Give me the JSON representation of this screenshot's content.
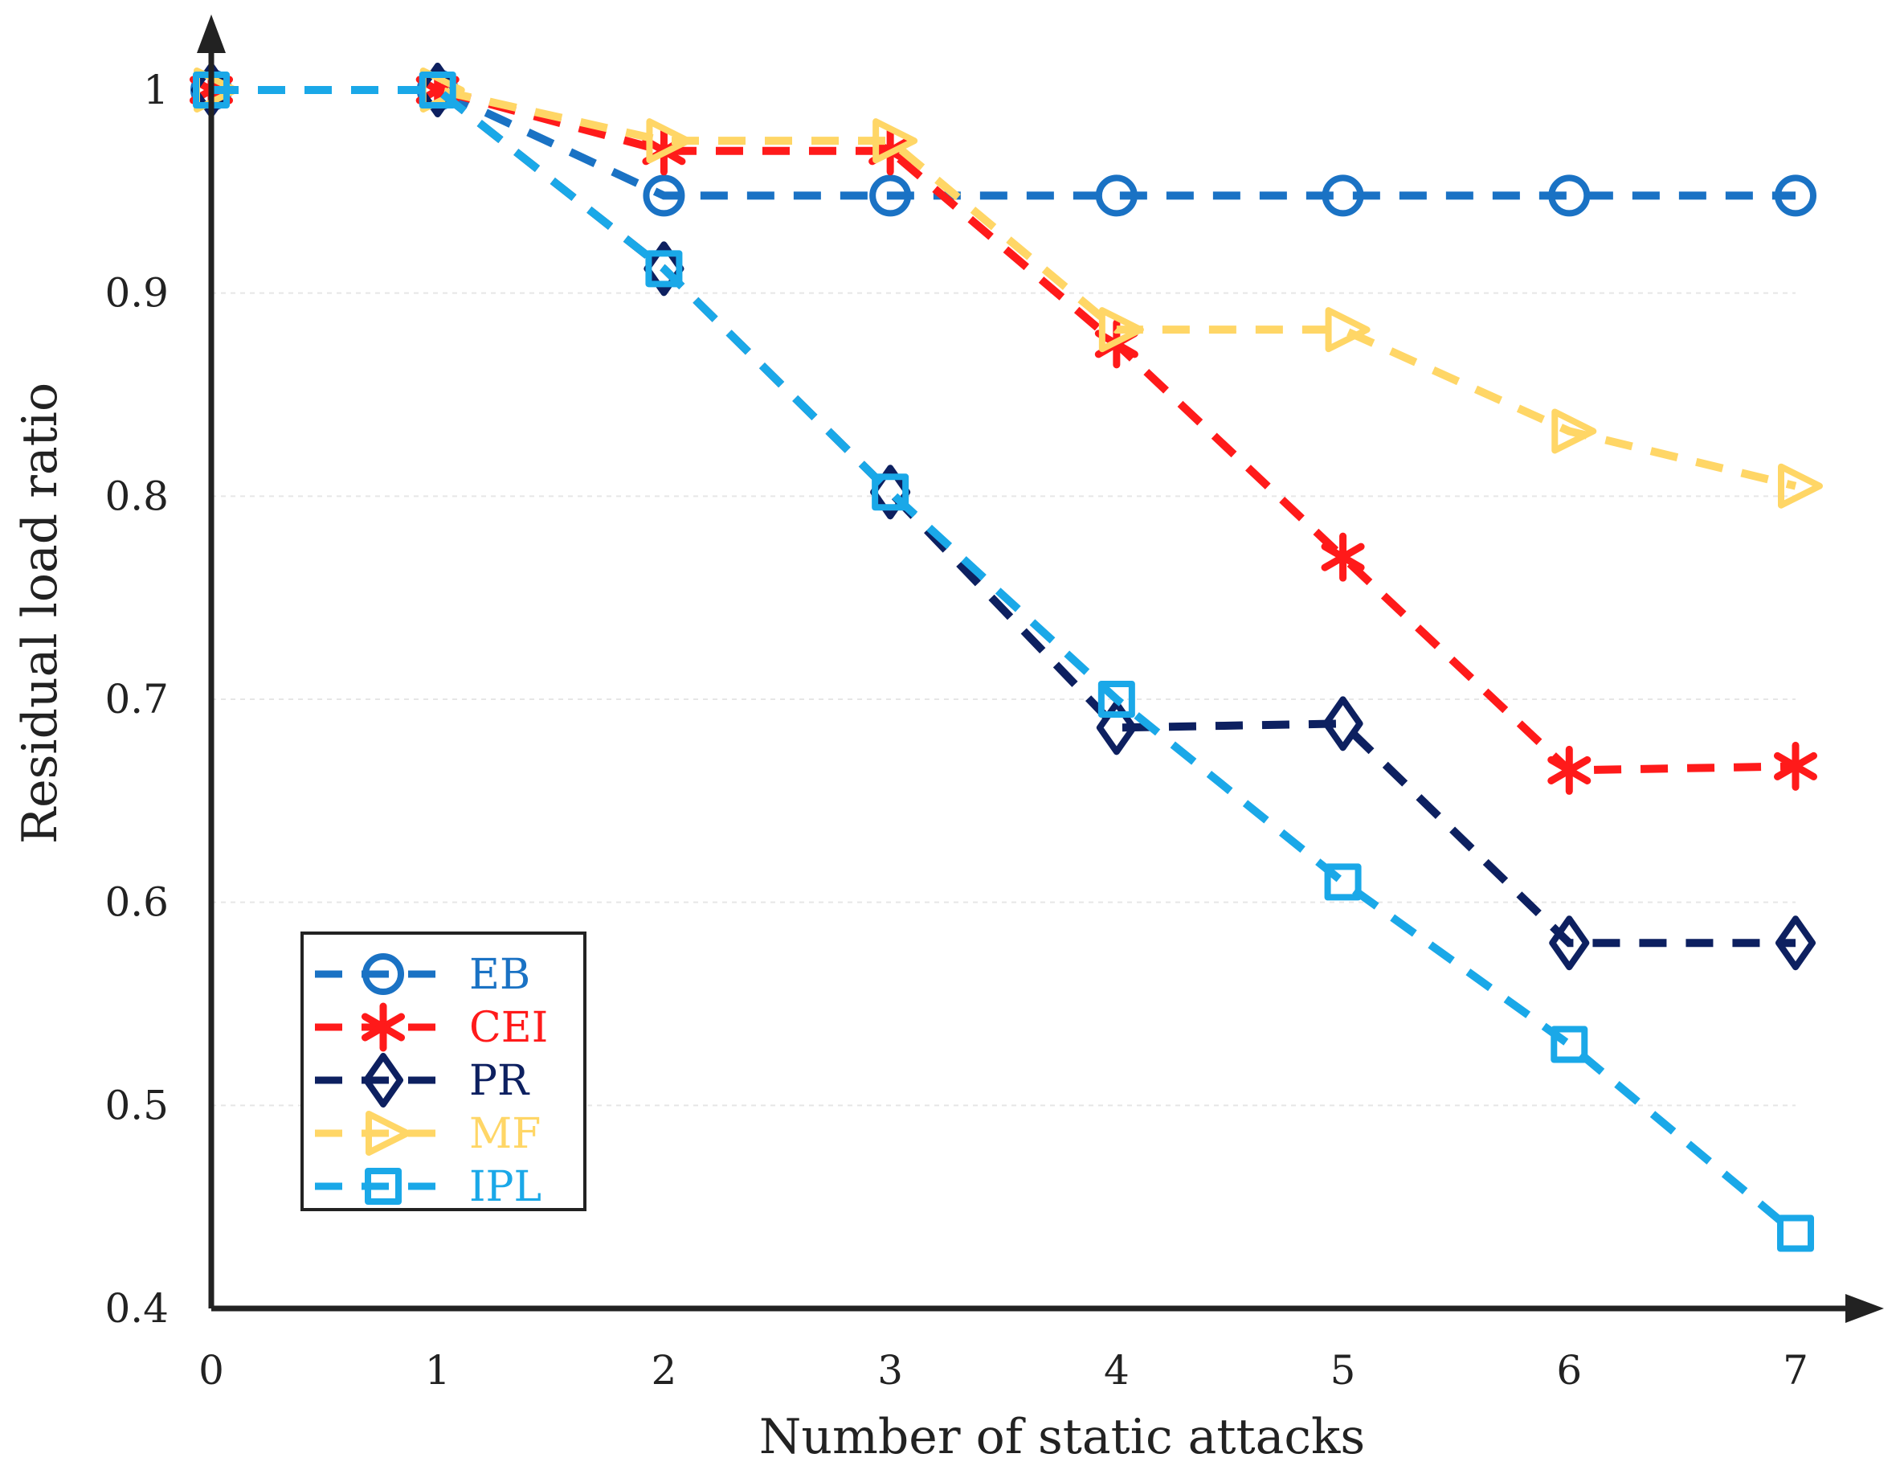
{
  "chart_data": {
    "type": "line",
    "title": "",
    "xlabel": "Number of static attacks",
    "ylabel": "Residual load ratio",
    "x": [
      0,
      1,
      2,
      3,
      4,
      5,
      6,
      7
    ],
    "xlim": [
      0,
      7
    ],
    "ylim": [
      0.4,
      1.0
    ],
    "xticks": [
      "0",
      "1",
      "2",
      "3",
      "4",
      "5",
      "6",
      "7"
    ],
    "yticks": [
      "0.4",
      "0.5",
      "0.6",
      "0.7",
      "0.8",
      "0.9",
      "1"
    ],
    "ytick_values": [
      0.4,
      0.5,
      0.6,
      0.7,
      0.8,
      0.9,
      1.0
    ],
    "grid": true,
    "legend_position": "bottom-left",
    "series": [
      {
        "name": "EB",
        "color": "#1a72c4",
        "marker": "circle",
        "values": [
          1.0,
          1.0,
          0.948,
          0.948,
          0.948,
          0.948,
          0.948,
          0.948
        ]
      },
      {
        "name": "CEI",
        "color": "#ff1a1a",
        "marker": "asterisk",
        "values": [
          1.0,
          1.0,
          0.97,
          0.97,
          0.875,
          0.77,
          0.665,
          0.667
        ]
      },
      {
        "name": "PR",
        "color": "#0d2060",
        "marker": "diamond",
        "values": [
          1.0,
          1.0,
          0.912,
          0.802,
          0.686,
          0.688,
          0.58,
          0.58
        ]
      },
      {
        "name": "MF",
        "color": "#ffd666",
        "marker": "triangle-right",
        "values": [
          1.0,
          1.0,
          0.975,
          0.975,
          0.882,
          0.882,
          0.832,
          0.805
        ]
      },
      {
        "name": "IPL",
        "color": "#1aa8e8",
        "marker": "square",
        "values": [
          1.0,
          1.0,
          0.912,
          0.802,
          0.7,
          0.61,
          0.53,
          0.437
        ]
      }
    ]
  }
}
